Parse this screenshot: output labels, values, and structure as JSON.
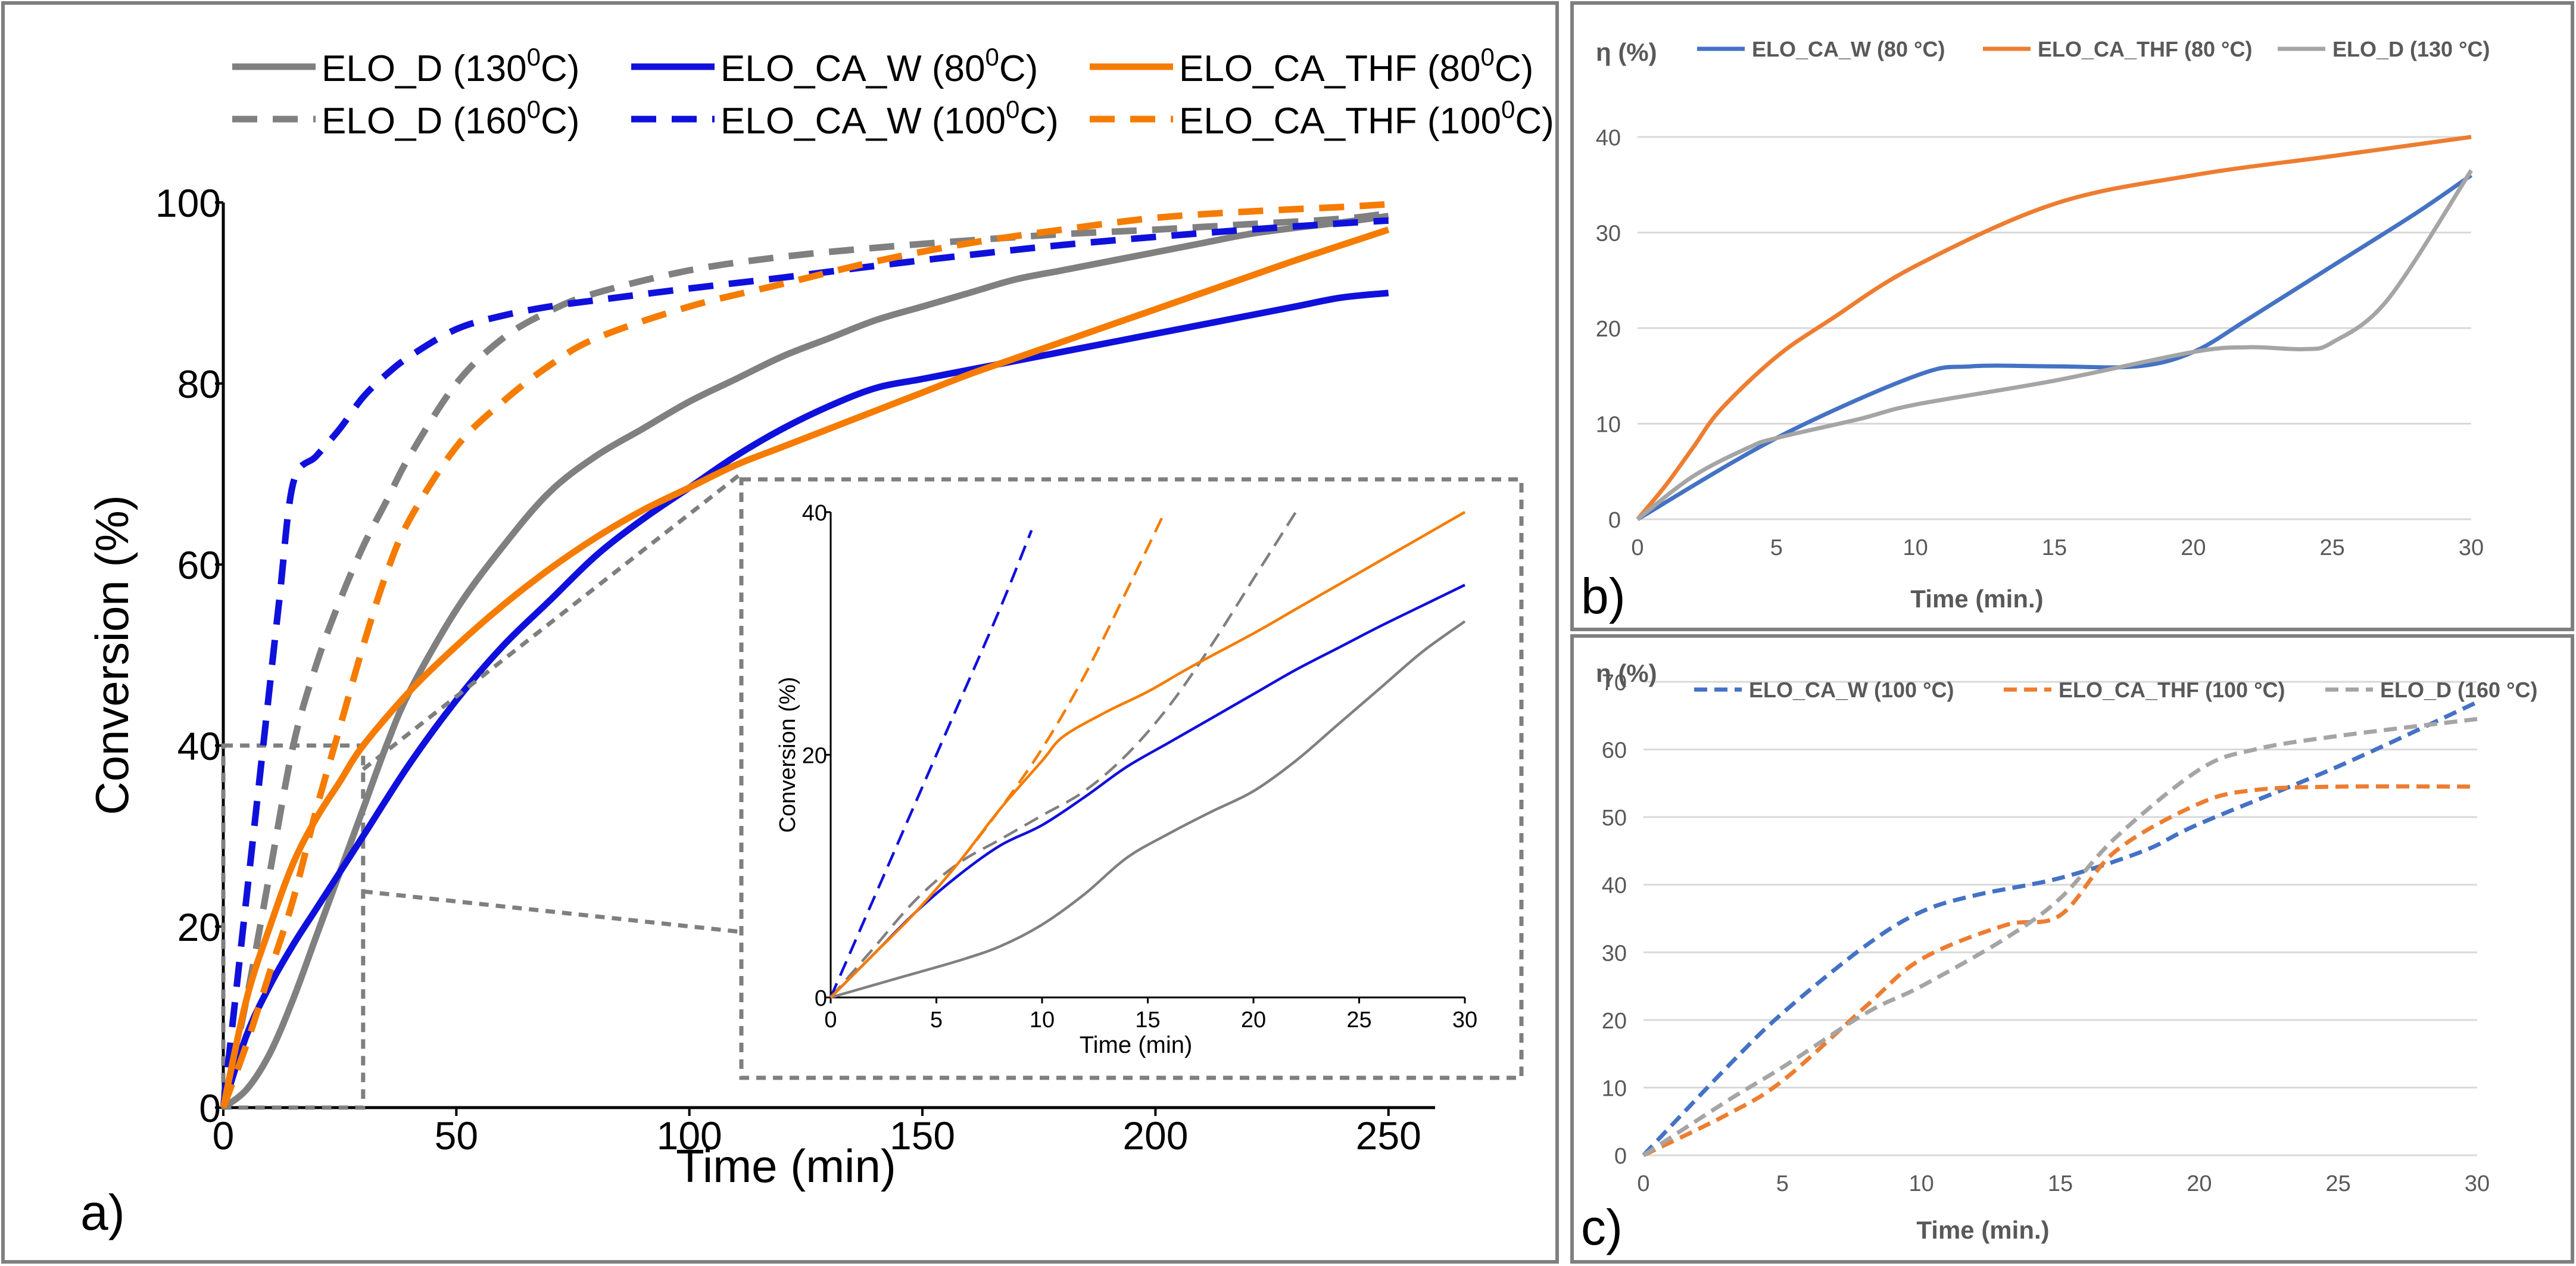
{
  "colors": {
    "gray": "#808080",
    "blue": "#1010dc",
    "orange": "#f57c00",
    "excel_blue": "#4472c4",
    "excel_orange": "#ed7d31",
    "excel_gray": "#a5a5a5",
    "grid": "#d9d9d9",
    "box": "#7f7f7f"
  },
  "panels": {
    "a": {
      "label": "a)"
    },
    "b": {
      "label": "b)"
    },
    "c": {
      "label": "c)"
    }
  },
  "chart_data": [
    {
      "id": "a",
      "type": "line",
      "xlabel": "Time (min)",
      "ylabel": "Conversion (%)",
      "xlim": [
        0,
        260
      ],
      "ylim": [
        0,
        100
      ],
      "xticks": [
        "0",
        "50",
        "100",
        "150",
        "200",
        "250"
      ],
      "yticks": [
        "0",
        "20",
        "40",
        "60",
        "80",
        "100"
      ],
      "legend_position": "top",
      "series": [
        {
          "name": "ELO_D (130°C)",
          "legend_main": "ELO_D (130",
          "legend_sup": "0",
          "legend_tail": "C)",
          "color": "gray",
          "dash": "solid",
          "x": [
            0,
            5,
            10,
            15,
            20,
            25,
            30,
            35,
            40,
            50,
            60,
            70,
            80,
            90,
            100,
            110,
            120,
            130,
            140,
            150,
            160,
            170,
            180,
            190,
            200,
            210,
            220,
            230,
            240,
            250
          ],
          "y": [
            0,
            2,
            6,
            12,
            19,
            26,
            33,
            40,
            46,
            55,
            62,
            68,
            72,
            75,
            78,
            80.5,
            83,
            85,
            87,
            88.5,
            90,
            91.5,
            92.5,
            93.5,
            94.5,
            95.5,
            96.5,
            97.2,
            97.8,
            98.5
          ]
        },
        {
          "name": "ELO_D (160°C)",
          "legend_main": "ELO_D (160",
          "legend_sup": "0",
          "legend_tail": "C)",
          "color": "gray",
          "dash": "dashed",
          "x": [
            0,
            5,
            10,
            15,
            20,
            25,
            30,
            35,
            40,
            50,
            60,
            70,
            80,
            100,
            120,
            140,
            160,
            180,
            200,
            220,
            240,
            250
          ],
          "y": [
            0,
            12,
            26,
            40,
            49,
            56,
            62,
            67,
            72,
            80,
            85,
            88,
            90,
            92.5,
            94,
            95,
            95.8,
            96.5,
            97,
            97.6,
            98.2,
            98.8
          ]
        },
        {
          "name": "ELO_CA_W (80°C)",
          "legend_main": "ELO_CA_W (80",
          "legend_sup": "0",
          "legend_tail": "C)",
          "color": "blue",
          "dash": "solid",
          "x": [
            0,
            5,
            10,
            15,
            20,
            25,
            30,
            40,
            50,
            60,
            70,
            80,
            90,
            100,
            110,
            120,
            130,
            140,
            150,
            160,
            170,
            180,
            190,
            200,
            210,
            220,
            230,
            240,
            250
          ],
          "y": [
            0,
            8,
            13.5,
            18,
            22,
            26,
            30,
            38,
            45,
            51,
            56,
            61,
            65,
            68.5,
            72,
            75,
            77.5,
            79.5,
            80.5,
            81.5,
            82.5,
            83.5,
            84.5,
            85.5,
            86.5,
            87.5,
            88.5,
            89.5,
            90
          ]
        },
        {
          "name": "ELO_CA_W (100°C)",
          "legend_main": "ELO_CA_W (100",
          "legend_sup": "0",
          "legend_tail": "C)",
          "color": "blue",
          "dash": "dashed",
          "x": [
            0,
            3,
            6,
            9,
            12,
            15,
            20,
            25,
            30,
            35,
            40,
            50,
            60,
            70,
            80,
            100,
            120,
            140,
            160,
            180,
            200,
            220,
            240,
            250
          ],
          "y": [
            0,
            14,
            28,
            42,
            56,
            69,
            72,
            75,
            78.5,
            81,
            83,
            86,
            87.5,
            88.5,
            89.2,
            90.5,
            91.7,
            93,
            94.2,
            95.3,
            96.2,
            97,
            97.7,
            98
          ]
        },
        {
          "name": "ELO_CA_THF (80°C)",
          "legend_main": "ELO_CA_THF (80",
          "legend_sup": "0",
          "legend_tail": "C)",
          "color": "orange",
          "dash": "solid",
          "x": [
            0,
            5,
            10,
            15,
            20,
            25,
            30,
            40,
            50,
            60,
            70,
            80,
            90,
            100,
            110,
            120,
            130,
            140,
            150,
            160,
            170,
            180,
            190,
            200,
            210,
            220,
            230,
            240,
            250
          ],
          "y": [
            0,
            12,
            20,
            27,
            32,
            36,
            40,
            46,
            51,
            55.5,
            59.5,
            63,
            66,
            68.5,
            71,
            73,
            75,
            77,
            79,
            81,
            82.8,
            84.6,
            86.4,
            88.2,
            90,
            91.8,
            93.6,
            95.3,
            97
          ]
        },
        {
          "name": "ELO_CA_THF (100°C)",
          "legend_main": "ELO_CA_THF (100",
          "legend_sup": "0",
          "legend_tail": "C)",
          "color": "orange",
          "dash": "dashed",
          "x": [
            0,
            5,
            10,
            15,
            20,
            25,
            30,
            35,
            40,
            50,
            60,
            70,
            80,
            100,
            120,
            140,
            160,
            180,
            200,
            220,
            240,
            250
          ],
          "y": [
            0,
            7,
            15,
            23,
            33,
            42,
            51,
            59,
            65,
            73,
            78,
            82,
            85,
            88.5,
            91,
            93.5,
            95.5,
            97,
            98.3,
            99,
            99.5,
            99.8
          ]
        }
      ],
      "zoom_region": {
        "xlim": [
          0,
          30
        ],
        "ylim": [
          0,
          40
        ]
      },
      "inset": {
        "type": "line",
        "xlabel": "Time (min)",
        "ylabel": "Conversion (%)",
        "xlim": [
          0,
          30
        ],
        "ylim": [
          0,
          40
        ],
        "xticks": [
          "0",
          "5",
          "10",
          "15",
          "20",
          "25",
          "30"
        ],
        "yticks": [
          "0",
          "20",
          "40"
        ],
        "series": [
          {
            "name": "ELO_D (130°C)",
            "color": "gray",
            "dash": "solid",
            "x": [
              0,
              2,
              4,
              6,
              8,
              10,
              12,
              14,
              16,
              18,
              20,
              22,
              24,
              26,
              28,
              30
            ],
            "y": [
              0,
              1,
              2,
              3,
              4.2,
              6,
              8.5,
              11.5,
              13.5,
              15.3,
              17,
              19.5,
              22.5,
              25.5,
              28.5,
              31
            ]
          },
          {
            "name": "ELO_D (160°C)",
            "color": "gray",
            "dash": "dashed",
            "x": [
              0,
              2,
              4,
              6,
              8,
              10,
              12,
              14,
              16,
              18,
              20,
              22
            ],
            "y": [
              0,
              4,
              8,
              11,
              13,
              15,
              17,
              20,
              24,
              29,
              34.5,
              40
            ]
          },
          {
            "name": "ELO_CA_W (80°C)",
            "color": "blue",
            "dash": "solid",
            "x": [
              0,
              2,
              4,
              6,
              8,
              10,
              12,
              14,
              16,
              18,
              20,
              22,
              24,
              26,
              28,
              30
            ],
            "y": [
              0,
              3.5,
              7,
              10,
              12.5,
              14.2,
              16.5,
              19,
              21,
              23,
              25,
              27,
              28.8,
              30.6,
              32.3,
              34
            ]
          },
          {
            "name": "ELO_CA_W (100°C)",
            "color": "blue",
            "dash": "dashed",
            "x": [
              0,
              2,
              4,
              6,
              8,
              9.5
            ],
            "y": [
              0,
              8,
              16,
              24,
              32,
              38.5
            ]
          },
          {
            "name": "ELO_CA_THF (80°C)",
            "color": "orange",
            "dash": "solid",
            "x": [
              0,
              2,
              4,
              6,
              8,
              10,
              11,
              13,
              15,
              17,
              20,
              22,
              24,
              26,
              28,
              30
            ],
            "y": [
              0,
              3.5,
              7,
              11,
              15.5,
              19.5,
              21.5,
              23.5,
              25.2,
              27.2,
              30,
              32,
              34,
              36,
              38,
              40
            ]
          },
          {
            "name": "ELO_CA_THF (100°C)",
            "color": "orange",
            "dash": "dashed",
            "x": [
              0,
              2,
              4,
              6,
              8,
              10,
              12,
              14,
              15.8
            ],
            "y": [
              0,
              3.5,
              7,
              11,
              15.5,
              20.5,
              26.5,
              33.5,
              40
            ]
          }
        ]
      }
    },
    {
      "id": "b",
      "type": "line",
      "title": "η (%)",
      "xlabel": "Time (min.)",
      "ylabel": "",
      "xlim": [
        0,
        30
      ],
      "ylim": [
        0,
        40
      ],
      "xticks": [
        "0",
        "5",
        "10",
        "15",
        "20",
        "25",
        "30"
      ],
      "yticks": [
        "0",
        "10",
        "20",
        "30",
        "40"
      ],
      "grid": true,
      "legend_position": "top",
      "series": [
        {
          "name": "ELO_CA_W (80 °C)",
          "color": "excel_blue",
          "dash": "solid",
          "x": [
            0,
            5,
            10,
            12,
            15,
            18,
            20,
            22,
            25,
            28,
            30
          ],
          "y": [
            0,
            8.5,
            15,
            16,
            16,
            16,
            17.5,
            21,
            26.5,
            32,
            36
          ]
        },
        {
          "name": "ELO_CA_THF (80 °C)",
          "color": "excel_orange",
          "dash": "solid",
          "x": [
            0,
            1,
            2,
            3,
            5,
            7,
            10,
            15,
            20,
            25,
            30
          ],
          "y": [
            0,
            3.5,
            7.5,
            11.5,
            17,
            21,
            26.5,
            33,
            36,
            38,
            40
          ]
        },
        {
          "name": "ELO_D (130 °C)",
          "color": "excel_gray",
          "dash": "solid",
          "x": [
            0,
            2,
            4,
            5,
            8,
            10,
            15,
            20,
            22,
            24,
            25,
            27,
            30
          ],
          "y": [
            0,
            4.5,
            7.5,
            8.5,
            10.5,
            12,
            14.5,
            17.5,
            18,
            17.8,
            18.5,
            23,
            36.5
          ]
        }
      ]
    },
    {
      "id": "c",
      "type": "line",
      "title": "η (%)",
      "xlabel": "Time (min.)",
      "ylabel": "",
      "xlim": [
        0,
        30
      ],
      "ylim": [
        0,
        70
      ],
      "xticks": [
        "0",
        "5",
        "10",
        "15",
        "20",
        "25",
        "30"
      ],
      "yticks": [
        "0",
        "10",
        "20",
        "30",
        "40",
        "50",
        "60",
        "70"
      ],
      "grid": true,
      "legend_position": "top",
      "series": [
        {
          "name": "ELO_CA_W (100 °C)",
          "color": "excel_blue",
          "dash": "dashed",
          "x": [
            0,
            3,
            5,
            8,
            10,
            12,
            15,
            18,
            20,
            25,
            30
          ],
          "y": [
            0,
            13,
            21,
            31,
            36,
            38.5,
            41,
            45,
            49,
            57.5,
            67
          ]
        },
        {
          "name": "ELO_CA_THF (100 °C)",
          "color": "excel_orange",
          "dash": "dashed",
          "x": [
            0,
            3,
            5,
            8,
            10,
            13,
            15,
            17,
            20,
            22,
            25,
            30
          ],
          "y": [
            0,
            6,
            11,
            22,
            29,
            34,
            35.5,
            45,
            52,
            54,
            54.5,
            54.5
          ]
        },
        {
          "name": "ELO_D (160 °C)",
          "color": "excel_gray",
          "dash": "dashed",
          "x": [
            0,
            3,
            5,
            8,
            10,
            13,
            15,
            17,
            20,
            22,
            25,
            30
          ],
          "y": [
            0,
            8,
            13,
            21,
            25,
            32,
            38,
            47,
            57,
            60,
            62,
            64.5
          ]
        }
      ]
    }
  ]
}
